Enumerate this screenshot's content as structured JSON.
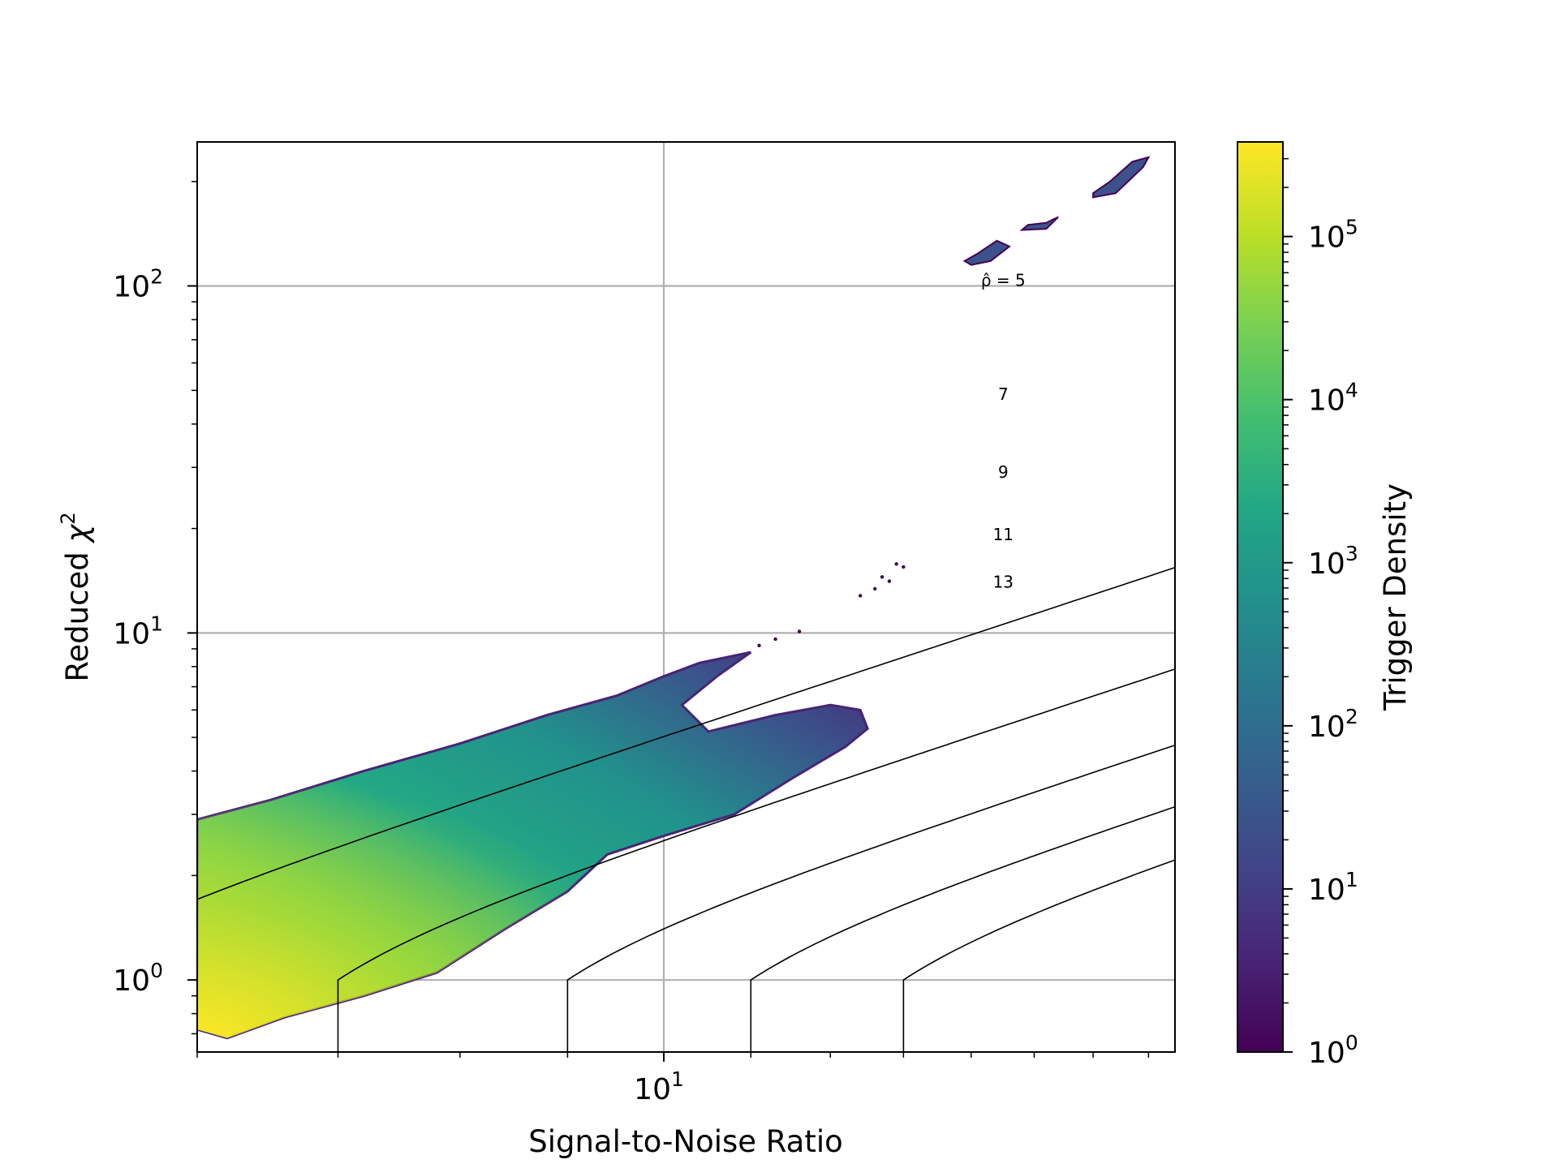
{
  "chart_data": {
    "type": "heatmap",
    "xlabel": "Signal-to-Noise Ratio",
    "ylabel_main": "Reduced ",
    "ylabel_symbol": "χ",
    "ylabel_sup": "2",
    "x_scale": "log",
    "y_scale": "log",
    "xlim": [
      6,
      17.5
    ],
    "ylim": [
      0.62,
      260
    ],
    "grid": true,
    "x_ticks": [
      {
        "value": 10,
        "base": "10",
        "exp": "1"
      }
    ],
    "y_ticks": [
      {
        "value": 1,
        "base": "10",
        "exp": "0"
      },
      {
        "value": 10,
        "base": "10",
        "exp": "1"
      },
      {
        "value": 100,
        "base": "10",
        "exp": "2"
      }
    ],
    "colorbar": {
      "label": "Trigger Density",
      "scale": "log",
      "range": [
        1,
        380000
      ],
      "colormap": "viridis",
      "ticks": [
        {
          "value": 1,
          "base": "10",
          "exp": "0"
        },
        {
          "value": 10,
          "base": "10",
          "exp": "1"
        },
        {
          "value": 100,
          "base": "10",
          "exp": "2"
        },
        {
          "value": 1000,
          "base": "10",
          "exp": "3"
        },
        {
          "value": 10000,
          "base": "10",
          "exp": "4"
        },
        {
          "value": 100000,
          "base": "10",
          "exp": "5"
        }
      ]
    },
    "contours": [
      {
        "rho_hat": 5,
        "label": "ρ̂ = 5",
        "label_at": [
          14.5,
          100
        ]
      },
      {
        "rho_hat": 7,
        "label": "7",
        "label_at": [
          14.5,
          47
        ]
      },
      {
        "rho_hat": 9,
        "label": "9",
        "label_at": [
          14.5,
          28
        ]
      },
      {
        "rho_hat": 11,
        "label": "11",
        "label_at": [
          14.5,
          18.5
        ]
      },
      {
        "rho_hat": 13,
        "label": "13",
        "label_at": [
          14.5,
          13.5
        ]
      }
    ],
    "density_regions": [
      {
        "name": "main-trigger-cloud",
        "peak_density": 350000,
        "peak_at": [
          6.0,
          1.2
        ],
        "edge_density": 1,
        "outline": [
          [
            6.0,
            0.72
          ],
          [
            6.2,
            0.68
          ],
          [
            6.6,
            0.78
          ],
          [
            7.2,
            0.9
          ],
          [
            7.8,
            1.05
          ],
          [
            8.4,
            1.4
          ],
          [
            9.0,
            1.8
          ],
          [
            9.4,
            2.3
          ],
          [
            10.0,
            2.6
          ],
          [
            10.8,
            3.0
          ],
          [
            11.5,
            3.8
          ],
          [
            12.2,
            4.7
          ],
          [
            12.5,
            5.3
          ],
          [
            12.4,
            6.0
          ],
          [
            12.0,
            6.2
          ],
          [
            11.3,
            5.8
          ],
          [
            10.5,
            5.2
          ],
          [
            10.2,
            6.2
          ],
          [
            10.6,
            7.5
          ],
          [
            11.0,
            8.8
          ],
          [
            10.4,
            8.2
          ],
          [
            10.0,
            7.5
          ],
          [
            9.5,
            6.6
          ],
          [
            8.8,
            5.8
          ],
          [
            8.0,
            4.8
          ],
          [
            7.2,
            4.0
          ],
          [
            6.5,
            3.3
          ],
          [
            6.0,
            2.9
          ]
        ],
        "sparse_points": [
          [
            11.1,
            9.2
          ],
          [
            11.3,
            9.6
          ],
          [
            11.6,
            10.1
          ],
          [
            12.4,
            12.8
          ],
          [
            12.6,
            13.4
          ],
          [
            12.8,
            14.1
          ],
          [
            13.0,
            15.5
          ],
          [
            12.9,
            15.8
          ],
          [
            12.7,
            14.5
          ]
        ]
      },
      {
        "name": "high-chisq-blob-1",
        "density": 15,
        "outline": [
          [
            14.0,
            115
          ],
          [
            14.3,
            118
          ],
          [
            14.6,
            130
          ],
          [
            14.4,
            135
          ],
          [
            14.1,
            124
          ],
          [
            13.9,
            118
          ]
        ]
      },
      {
        "name": "high-chisq-blob-2",
        "density": 15,
        "outline": [
          [
            14.8,
            145
          ],
          [
            15.2,
            146
          ],
          [
            15.4,
            158
          ],
          [
            15.2,
            152
          ],
          [
            14.9,
            150
          ]
        ]
      },
      {
        "name": "high-chisq-blob-3",
        "density": 15,
        "outline": [
          [
            16.0,
            180
          ],
          [
            16.4,
            185
          ],
          [
            16.9,
            220
          ],
          [
            17.0,
            235
          ],
          [
            16.7,
            228
          ],
          [
            16.3,
            200
          ],
          [
            16.0,
            185
          ]
        ]
      }
    ]
  }
}
